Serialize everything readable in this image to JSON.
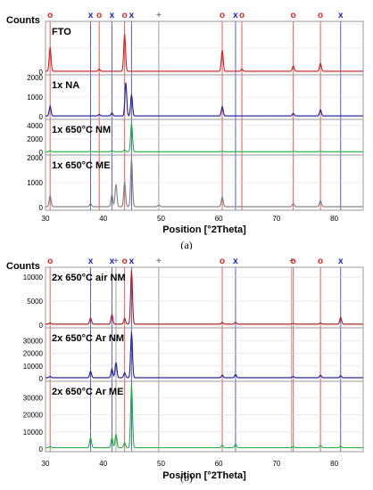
{
  "captions": {
    "a": "(a)",
    "b": "(b)"
  },
  "chart_data": [
    {
      "type": "line",
      "subtype": "stacked-xrd-patterns",
      "panel": "a",
      "ylabel": "Counts",
      "xlabel": "Position [°2Theta]",
      "xlim": [
        30,
        85
      ],
      "x_ticks": [
        30,
        40,
        50,
        60,
        70,
        80
      ],
      "grid": true,
      "markers": [
        {
          "x": 30.8,
          "symbol": "o",
          "color": "#e02020"
        },
        {
          "x": 37.8,
          "symbol": "x",
          "color": "#2020c8"
        },
        {
          "x": 39.3,
          "symbol": "o",
          "color": "#e02020"
        },
        {
          "x": 41.5,
          "symbol": "x",
          "color": "#2020c8"
        },
        {
          "x": 43.7,
          "symbol": "o",
          "color": "#e02020"
        },
        {
          "x": 44.9,
          "symbol": "x",
          "color": "#2020c8"
        },
        {
          "x": 49.6,
          "symbol": "+",
          "color": "#808080"
        },
        {
          "x": 60.6,
          "symbol": "o",
          "color": "#e02020"
        },
        {
          "x": 62.9,
          "symbol": "x",
          "color": "#2020c8"
        },
        {
          "x": 64.0,
          "symbol": "o",
          "color": "#e02020"
        },
        {
          "x": 72.9,
          "symbol": "o",
          "color": "#e02020"
        },
        {
          "x": 77.6,
          "symbol": "o",
          "color": "#e02020"
        },
        {
          "x": 81.1,
          "symbol": "x",
          "color": "#2020c8"
        }
      ],
      "series": [
        {
          "name": "FTO",
          "color": "#d42020",
          "ylim": [
            0,
            2000
          ],
          "yticks": [
            0,
            1000,
            2000
          ],
          "tick_labels": [
            "0",
            "",
            ""
          ],
          "peaks": [
            [
              30.8,
              1000
            ],
            [
              39.3,
              90
            ],
            [
              43.7,
              1550
            ],
            [
              60.6,
              880
            ],
            [
              64.0,
              90
            ],
            [
              72.9,
              220
            ],
            [
              77.6,
              330
            ]
          ]
        },
        {
          "name": "1x NA",
          "color": "#1c1c9c",
          "ylim": [
            0,
            2000
          ],
          "yticks": [
            0,
            1000,
            2000
          ],
          "tick_labels": [
            "0",
            "1000",
            "2000"
          ],
          "peaks": [
            [
              30.8,
              500
            ],
            [
              39.3,
              80
            ],
            [
              41.5,
              150
            ],
            [
              43.9,
              1700
            ],
            [
              44.9,
              1100
            ],
            [
              60.6,
              480
            ],
            [
              72.9,
              130
            ],
            [
              77.6,
              320
            ]
          ]
        },
        {
          "name": "1x 650°C NM",
          "color": "#1fb43a",
          "ylim": [
            0,
            4500
          ],
          "yticks": [
            0,
            2000,
            4000
          ],
          "tick_labels": [
            "0",
            "2000",
            "4000"
          ],
          "peaks": [
            [
              30.8,
              150
            ],
            [
              37.8,
              60
            ],
            [
              41.5,
              200
            ],
            [
              43.7,
              300
            ],
            [
              44.9,
              4300
            ],
            [
              60.6,
              120
            ],
            [
              72.9,
              80
            ],
            [
              77.6,
              100
            ]
          ]
        },
        {
          "name": "1x 650°C ME",
          "color": "#808080",
          "ylim": [
            0,
            2000
          ],
          "yticks": [
            0,
            1000,
            2000
          ],
          "tick_labels": [
            "0",
            "1000",
            "2000"
          ],
          "peaks": [
            [
              30.8,
              450
            ],
            [
              37.8,
              120
            ],
            [
              41.5,
              500
            ],
            [
              42.2,
              900
            ],
            [
              43.7,
              1000
            ],
            [
              44.9,
              1950
            ],
            [
              49.6,
              60
            ],
            [
              60.6,
              400
            ],
            [
              72.9,
              120
            ],
            [
              77.6,
              250
            ]
          ]
        }
      ]
    },
    {
      "type": "line",
      "subtype": "stacked-xrd-patterns",
      "panel": "b",
      "ylabel": "Counts",
      "xlabel": "Position [°2Theta]",
      "xlim": [
        30,
        85
      ],
      "x_ticks": [
        30,
        40,
        50,
        60,
        70,
        80
      ],
      "grid": true,
      "markers": [
        {
          "x": 30.8,
          "symbol": "o",
          "color": "#e02020"
        },
        {
          "x": 37.8,
          "symbol": "x",
          "color": "#2020c8"
        },
        {
          "x": 41.5,
          "symbol": "x",
          "color": "#2020c8"
        },
        {
          "x": 42.2,
          "symbol": "+",
          "color": "#808080"
        },
        {
          "x": 43.7,
          "symbol": "o",
          "color": "#e02020"
        },
        {
          "x": 44.9,
          "symbol": "x",
          "color": "#2020c8"
        },
        {
          "x": 49.6,
          "symbol": "+",
          "color": "#808080"
        },
        {
          "x": 60.6,
          "symbol": "o",
          "color": "#e02020"
        },
        {
          "x": 62.9,
          "symbol": "x",
          "color": "#2020c8"
        },
        {
          "x": 72.6,
          "symbol": "+",
          "color": "#808080"
        },
        {
          "x": 72.9,
          "symbol": "o",
          "color": "#e02020"
        },
        {
          "x": 77.6,
          "symbol": "o",
          "color": "#e02020"
        },
        {
          "x": 81.1,
          "symbol": "x",
          "color": "#2020c8"
        }
      ],
      "series": [
        {
          "name": "2x 650°C air NM",
          "color": "#b01818",
          "ylim": [
            0,
            11500
          ],
          "yticks": [
            0,
            5000,
            10000
          ],
          "tick_labels": [
            "0",
            "5000",
            "10000"
          ],
          "peaks": [
            [
              30.8,
              250
            ],
            [
              37.8,
              1300
            ],
            [
              41.5,
              2000
            ],
            [
              43.7,
              1200
            ],
            [
              44.9,
              11200
            ],
            [
              60.6,
              350
            ],
            [
              62.9,
              350
            ],
            [
              72.9,
              150
            ],
            [
              77.6,
              250
            ],
            [
              81.1,
              1400
            ]
          ]
        },
        {
          "name": "2x 650°C Ar NM",
          "color": "#1c1c9c",
          "ylim": [
            0,
            38000
          ],
          "yticks": [
            0,
            10000,
            20000,
            30000
          ],
          "tick_labels": [
            "0",
            "10000",
            "20000",
            "30000"
          ],
          "peaks": [
            [
              30.8,
              1000
            ],
            [
              37.8,
              5000
            ],
            [
              41.5,
              7000
            ],
            [
              42.2,
              12000
            ],
            [
              43.7,
              4000
            ],
            [
              44.9,
              36000
            ],
            [
              60.6,
              2000
            ],
            [
              62.9,
              2500
            ],
            [
              72.9,
              1000
            ],
            [
              77.6,
              2000
            ],
            [
              81.1,
              1500
            ]
          ]
        },
        {
          "name": "2x 650°C Ar ME",
          "color": "#1fb43a",
          "ylim": [
            0,
            38000
          ],
          "yticks": [
            0,
            10000,
            20000,
            30000
          ],
          "tick_labels": [
            "0",
            "10000",
            "20000",
            "30000"
          ],
          "peaks": [
            [
              30.8,
              800
            ],
            [
              37.8,
              6000
            ],
            [
              41.5,
              6000
            ],
            [
              42.2,
              8000
            ],
            [
              43.7,
              3000
            ],
            [
              44.9,
              37000
            ],
            [
              60.6,
              1500
            ],
            [
              62.9,
              2000
            ],
            [
              72.9,
              800
            ],
            [
              77.6,
              1500
            ],
            [
              81.1,
              1000
            ]
          ]
        }
      ]
    }
  ]
}
